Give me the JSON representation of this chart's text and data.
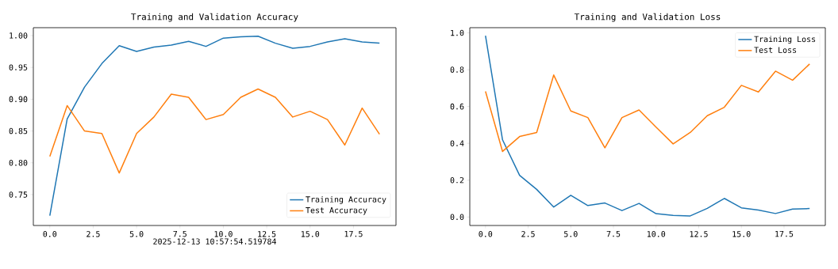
{
  "chart_data": [
    {
      "type": "line",
      "title": "Training and Validation Accuracy",
      "xlabel": "2025-12-13 10:57:54.519784",
      "x": [
        0,
        1,
        2,
        3,
        4,
        5,
        6,
        7,
        8,
        9,
        10,
        11,
        12,
        13,
        14,
        15,
        16,
        17,
        18,
        19
      ],
      "series": [
        {
          "name": "Training Accuracy",
          "color": "#1f77b4",
          "values": [
            0.717,
            0.869,
            0.919,
            0.956,
            0.984,
            0.975,
            0.982,
            0.985,
            0.991,
            0.983,
            0.996,
            0.998,
            0.999,
            0.988,
            0.98,
            0.983,
            0.99,
            0.995,
            0.99,
            0.988
          ]
        },
        {
          "name": "Test Accuracy",
          "color": "#ff7f0e",
          "values": [
            0.81,
            0.89,
            0.85,
            0.846,
            0.784,
            0.846,
            0.872,
            0.908,
            0.903,
            0.868,
            0.876,
            0.903,
            0.916,
            0.903,
            0.872,
            0.881,
            0.868,
            0.828,
            0.886,
            0.845
          ]
        }
      ],
      "xlim": [
        -0.95,
        19.95
      ],
      "ylim": [
        0.7015,
        1.0124
      ],
      "xticks": [
        {
          "value": 0,
          "label": "0.0"
        },
        {
          "value": 2.5,
          "label": "2.5"
        },
        {
          "value": 5,
          "label": "5.0"
        },
        {
          "value": 7.5,
          "label": "7.5"
        },
        {
          "value": 10,
          "label": "10.0"
        },
        {
          "value": 12.5,
          "label": "12.5"
        },
        {
          "value": 15,
          "label": "15.0"
        },
        {
          "value": 17.5,
          "label": "17.5"
        }
      ],
      "yticks": [
        {
          "value": 0.75,
          "label": "0.75"
        },
        {
          "value": 0.8,
          "label": "0.80"
        },
        {
          "value": 0.85,
          "label": "0.85"
        },
        {
          "value": 0.9,
          "label": "0.90"
        },
        {
          "value": 0.95,
          "label": "0.95"
        },
        {
          "value": 1.0,
          "label": "1.00"
        }
      ],
      "legend": "bottom right",
      "grid": false
    },
    {
      "type": "line",
      "title": "Training and Validation Loss",
      "x": [
        0,
        1,
        2,
        3,
        4,
        5,
        6,
        7,
        8,
        9,
        10,
        11,
        12,
        13,
        14,
        15,
        16,
        17,
        18,
        19
      ],
      "series": [
        {
          "name": "Training Loss",
          "color": "#1f77b4",
          "values": [
            0.984,
            0.419,
            0.226,
            0.15,
            0.054,
            0.118,
            0.062,
            0.076,
            0.035,
            0.074,
            0.018,
            0.009,
            0.006,
            0.047,
            0.101,
            0.05,
            0.038,
            0.019,
            0.043,
            0.046
          ]
        },
        {
          "name": "Test Loss",
          "color": "#ff7f0e",
          "values": [
            0.682,
            0.356,
            0.437,
            0.459,
            0.771,
            0.576,
            0.54,
            0.376,
            0.54,
            0.581,
            0.488,
            0.397,
            0.459,
            0.55,
            0.596,
            0.715,
            0.679,
            0.792,
            0.743,
            0.831
          ]
        }
      ],
      "xlim": [
        -0.92,
        19.92
      ],
      "ylim": [
        -0.046,
        1.028
      ],
      "xticks": [
        {
          "value": 0,
          "label": "0.0"
        },
        {
          "value": 2.5,
          "label": "2.5"
        },
        {
          "value": 5,
          "label": "5.0"
        },
        {
          "value": 7.5,
          "label": "7.5"
        },
        {
          "value": 10,
          "label": "10.0"
        },
        {
          "value": 12.5,
          "label": "12.5"
        },
        {
          "value": 15,
          "label": "15.0"
        },
        {
          "value": 17.5,
          "label": "17.5"
        }
      ],
      "yticks": [
        {
          "value": 0,
          "label": "0.0"
        },
        {
          "value": 0.2,
          "label": "0.2"
        },
        {
          "value": 0.4,
          "label": "0.4"
        },
        {
          "value": 0.6,
          "label": "0.6"
        },
        {
          "value": 0.8,
          "label": "0.8"
        },
        {
          "value": 1.0,
          "label": "1.0"
        }
      ],
      "legend": "top right",
      "grid": false
    }
  ]
}
